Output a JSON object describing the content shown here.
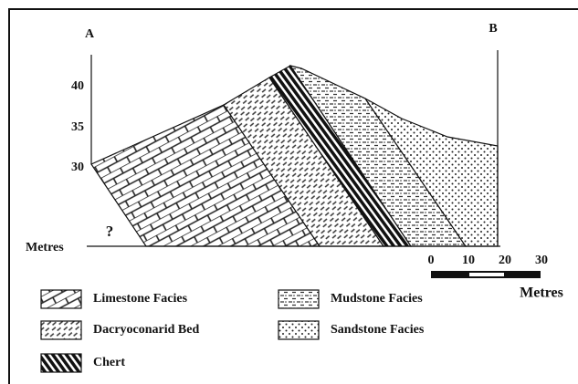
{
  "section": {
    "end_left": "A",
    "end_right": "B",
    "elevation_labels": [
      "40",
      "35",
      "30"
    ],
    "elevation_unit": "Metres",
    "unknown_mark": "?"
  },
  "scale_bar": {
    "labels": [
      "0",
      "10",
      "20",
      "30"
    ],
    "unit": "Metres"
  },
  "legend": {
    "items": [
      "Limestone Facies",
      "Dacryoconarid Bed",
      "Chert",
      "Mudstone Facies",
      "Sandstone Facies"
    ]
  }
}
